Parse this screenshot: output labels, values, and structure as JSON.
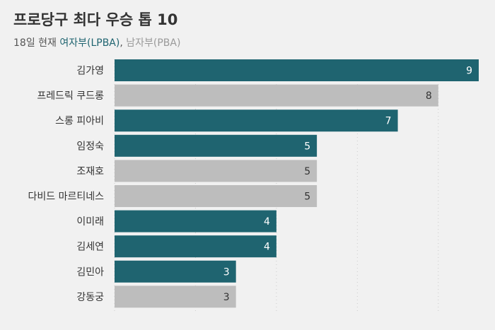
{
  "title": "프로당구 최다 우승 톱 10",
  "subtitle": {
    "prefix": "18일 현재 ",
    "lpba_label": "여자부(LPBA)",
    "separator": ", ",
    "pba_label": "남자부(PBA)"
  },
  "colors": {
    "lpba": "#1f6470",
    "pba": "#bdbdbd",
    "lpba_value_text": "#ffffff",
    "pba_value_text": "#333333",
    "grid": "#cccccc",
    "background": "#f1f1f1"
  },
  "chart_data": {
    "type": "bar",
    "orientation": "horizontal",
    "title": "프로당구 최다 우승 톱 10",
    "xlim": [
      0,
      9
    ],
    "grid": true,
    "categories": [
      "김가영",
      "프레드릭 쿠드롱",
      "스롱 피아비",
      "임정숙",
      "조재호",
      "다비드 마르티네스",
      "이미래",
      "김세연",
      "김민아",
      "강동궁"
    ],
    "values": [
      9,
      8,
      7,
      5,
      5,
      5,
      4,
      4,
      3,
      3
    ],
    "division": [
      "LPBA",
      "PBA",
      "LPBA",
      "LPBA",
      "PBA",
      "PBA",
      "LPBA",
      "LPBA",
      "LPBA",
      "PBA"
    ]
  }
}
